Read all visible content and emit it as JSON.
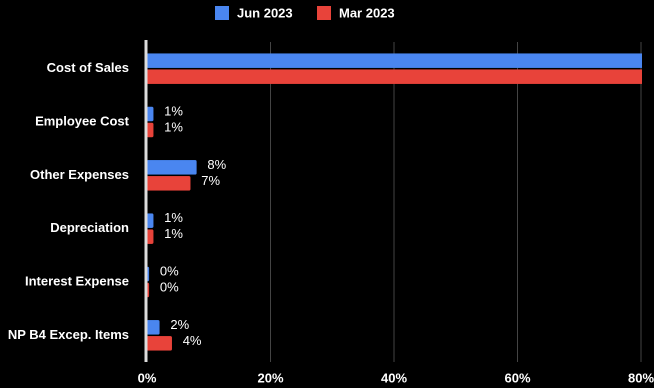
{
  "chart_data": {
    "type": "hbar",
    "categories": [
      "Cost of Sales",
      "Employee Cost",
      "Other Expenses",
      "Depreciation",
      "Interest Expense",
      "NP B4 Excep. Items"
    ],
    "series": [
      {
        "name": "Jun 2023",
        "color": "#4a86f0",
        "values": [
          85,
          1,
          8,
          1,
          0.3,
          2
        ],
        "value_labels": [
          null,
          "1%",
          "8%",
          "1%",
          "0%",
          "2%"
        ]
      },
      {
        "name": "Mar 2023",
        "color": "#e8433a",
        "values": [
          85,
          1,
          7,
          1,
          0.3,
          4
        ],
        "value_labels": [
          null,
          "1%",
          "7%",
          "1%",
          "0%",
          "4%"
        ]
      }
    ],
    "xlim": [
      0,
      80
    ],
    "xticks": [
      {
        "value": 0,
        "label": "0%"
      },
      {
        "value": 20,
        "label": "20%"
      },
      {
        "value": 40,
        "label": "40%"
      },
      {
        "value": 60,
        "label": "60%"
      },
      {
        "value": 80,
        "label": "80%"
      }
    ],
    "grid": true,
    "legend": "top"
  }
}
